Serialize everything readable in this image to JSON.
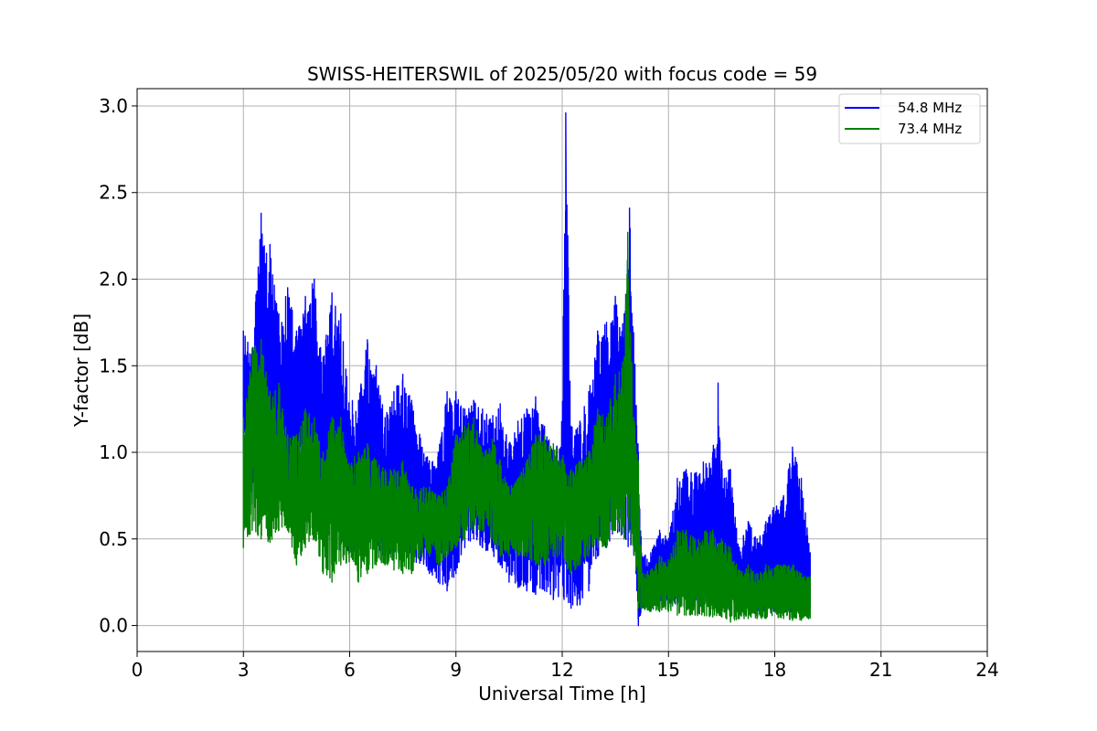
{
  "chart_data": {
    "type": "line",
    "title": "SWISS-HEITERSWIL of 2025/05/20 with focus code = 59",
    "xlabel": "Universal Time [h]",
    "ylabel": "Y-factor [dB]",
    "xlim": [
      0,
      24
    ],
    "ylim": [
      -0.15,
      3.1
    ],
    "xticks": [
      0,
      3,
      6,
      9,
      12,
      15,
      18,
      21,
      24
    ],
    "xtick_labels": [
      "0",
      "3",
      "6",
      "9",
      "12",
      "15",
      "18",
      "21",
      "24"
    ],
    "yticks": [
      0.0,
      0.5,
      1.0,
      1.5,
      2.0,
      2.5,
      3.0
    ],
    "ytick_labels": [
      "0.0",
      "0.5",
      "1.0",
      "1.5",
      "2.0",
      "2.5",
      "3.0"
    ],
    "grid": true,
    "legend_position": "top-right",
    "series": [
      {
        "name": "54.8 MHz",
        "color": "#0000ff",
        "data_range": [
          3.0,
          19.0
        ],
        "upper_envelope": [
          [
            3.0,
            1.7
          ],
          [
            3.25,
            1.6
          ],
          [
            3.5,
            2.38
          ],
          [
            3.75,
            2.2
          ],
          [
            4.0,
            1.8
          ],
          [
            4.25,
            1.95
          ],
          [
            4.5,
            1.7
          ],
          [
            4.75,
            1.9
          ],
          [
            5.0,
            2.0
          ],
          [
            5.25,
            1.55
          ],
          [
            5.5,
            1.92
          ],
          [
            5.75,
            1.8
          ],
          [
            6.0,
            1.3
          ],
          [
            6.25,
            1.3
          ],
          [
            6.5,
            1.65
          ],
          [
            6.75,
            1.5
          ],
          [
            7.0,
            1.2
          ],
          [
            7.25,
            1.35
          ],
          [
            7.5,
            1.45
          ],
          [
            7.75,
            1.3
          ],
          [
            8.0,
            1.1
          ],
          [
            8.25,
            0.95
          ],
          [
            8.5,
            1.0
          ],
          [
            8.75,
            1.35
          ],
          [
            9.0,
            1.35
          ],
          [
            9.25,
            1.25
          ],
          [
            9.5,
            1.3
          ],
          [
            9.75,
            1.25
          ],
          [
            10.0,
            1.2
          ],
          [
            10.25,
            1.28
          ],
          [
            10.5,
            1.05
          ],
          [
            10.75,
            1.18
          ],
          [
            11.0,
            1.25
          ],
          [
            11.25,
            1.32
          ],
          [
            11.5,
            1.15
          ],
          [
            11.75,
            1.0
          ],
          [
            12.0,
            1.2
          ],
          [
            12.1,
            2.96
          ],
          [
            12.25,
            1.15
          ],
          [
            12.5,
            1.18
          ],
          [
            12.75,
            1.35
          ],
          [
            13.0,
            1.7
          ],
          [
            13.25,
            1.75
          ],
          [
            13.5,
            1.9
          ],
          [
            13.75,
            1.8
          ],
          [
            13.9,
            2.41
          ],
          [
            14.0,
            1.8
          ],
          [
            14.15,
            1.0
          ],
          [
            14.25,
            0.4
          ],
          [
            14.5,
            0.42
          ],
          [
            14.75,
            0.55
          ],
          [
            15.0,
            0.5
          ],
          [
            15.25,
            0.85
          ],
          [
            15.5,
            0.9
          ],
          [
            15.75,
            0.88
          ],
          [
            16.0,
            0.95
          ],
          [
            16.25,
            1.0
          ],
          [
            16.4,
            1.4
          ],
          [
            16.5,
            0.95
          ],
          [
            16.75,
            0.9
          ],
          [
            17.0,
            0.45
          ],
          [
            17.25,
            0.6
          ],
          [
            17.5,
            0.5
          ],
          [
            17.75,
            0.6
          ],
          [
            18.0,
            0.7
          ],
          [
            18.25,
            0.75
          ],
          [
            18.5,
            1.03
          ],
          [
            18.75,
            0.85
          ],
          [
            19.0,
            0.42
          ]
        ],
        "lower_envelope": [
          [
            3.0,
            1.0
          ],
          [
            3.25,
            0.7
          ],
          [
            3.5,
            0.85
          ],
          [
            3.75,
            0.8
          ],
          [
            4.0,
            0.75
          ],
          [
            4.25,
            0.7
          ],
          [
            4.5,
            0.75
          ],
          [
            4.75,
            0.65
          ],
          [
            5.0,
            0.7
          ],
          [
            5.25,
            0.55
          ],
          [
            5.5,
            0.6
          ],
          [
            5.75,
            0.55
          ],
          [
            6.0,
            0.4
          ],
          [
            6.25,
            0.45
          ],
          [
            6.5,
            0.5
          ],
          [
            6.75,
            0.42
          ],
          [
            7.0,
            0.4
          ],
          [
            7.25,
            0.4
          ],
          [
            7.5,
            0.42
          ],
          [
            7.75,
            0.38
          ],
          [
            8.0,
            0.35
          ],
          [
            8.25,
            0.3
          ],
          [
            8.5,
            0.25
          ],
          [
            8.75,
            0.2
          ],
          [
            9.0,
            0.3
          ],
          [
            9.25,
            0.45
          ],
          [
            9.5,
            0.5
          ],
          [
            9.75,
            0.45
          ],
          [
            10.0,
            0.4
          ],
          [
            10.25,
            0.35
          ],
          [
            10.5,
            0.25
          ],
          [
            10.75,
            0.22
          ],
          [
            11.0,
            0.2
          ],
          [
            11.25,
            0.18
          ],
          [
            11.5,
            0.2
          ],
          [
            11.75,
            0.15
          ],
          [
            12.0,
            0.15
          ],
          [
            12.25,
            0.1
          ],
          [
            12.5,
            0.12
          ],
          [
            12.75,
            0.2
          ],
          [
            13.0,
            0.4
          ],
          [
            13.25,
            0.45
          ],
          [
            13.5,
            0.55
          ],
          [
            13.75,
            0.5
          ],
          [
            14.0,
            0.4
          ],
          [
            14.15,
            0.0
          ],
          [
            14.25,
            0.1
          ],
          [
            14.5,
            0.1
          ],
          [
            14.75,
            0.1
          ],
          [
            15.0,
            0.1
          ],
          [
            15.25,
            0.12
          ],
          [
            15.5,
            0.1
          ],
          [
            15.75,
            0.1
          ],
          [
            16.0,
            0.1
          ],
          [
            16.25,
            0.1
          ],
          [
            16.5,
            0.1
          ],
          [
            16.75,
            0.08
          ],
          [
            17.0,
            0.08
          ],
          [
            17.25,
            0.08
          ],
          [
            17.5,
            0.08
          ],
          [
            17.75,
            0.08
          ],
          [
            18.0,
            0.08
          ],
          [
            18.25,
            0.06
          ],
          [
            18.5,
            0.06
          ],
          [
            18.75,
            0.06
          ],
          [
            19.0,
            0.1
          ]
        ]
      },
      {
        "name": "73.4 MHz",
        "color": "#008000",
        "data_range": [
          3.0,
          19.0
        ],
        "upper_envelope": [
          [
            3.0,
            1.2
          ],
          [
            3.25,
            1.6
          ],
          [
            3.5,
            1.65
          ],
          [
            3.75,
            1.35
          ],
          [
            4.0,
            1.4
          ],
          [
            4.25,
            1.1
          ],
          [
            4.5,
            1.1
          ],
          [
            4.75,
            1.25
          ],
          [
            5.0,
            1.2
          ],
          [
            5.25,
            1.0
          ],
          [
            5.5,
            1.2
          ],
          [
            5.75,
            1.2
          ],
          [
            6.0,
            0.95
          ],
          [
            6.25,
            1.0
          ],
          [
            6.5,
            1.05
          ],
          [
            6.75,
            0.95
          ],
          [
            7.0,
            0.9
          ],
          [
            7.25,
            0.9
          ],
          [
            7.5,
            0.95
          ],
          [
            7.75,
            0.8
          ],
          [
            8.0,
            0.8
          ],
          [
            8.25,
            0.8
          ],
          [
            8.5,
            0.75
          ],
          [
            8.75,
            0.8
          ],
          [
            9.0,
            1.1
          ],
          [
            9.25,
            1.15
          ],
          [
            9.5,
            1.2
          ],
          [
            9.75,
            1.0
          ],
          [
            10.0,
            1.1
          ],
          [
            10.25,
            0.95
          ],
          [
            10.5,
            0.8
          ],
          [
            10.75,
            0.85
          ],
          [
            11.0,
            0.95
          ],
          [
            11.25,
            1.1
          ],
          [
            11.5,
            1.1
          ],
          [
            11.75,
            1.05
          ],
          [
            12.0,
            1.0
          ],
          [
            12.25,
            0.9
          ],
          [
            12.5,
            0.95
          ],
          [
            12.75,
            1.0
          ],
          [
            13.0,
            1.25
          ],
          [
            13.25,
            1.2
          ],
          [
            13.5,
            1.45
          ],
          [
            13.75,
            1.55
          ],
          [
            13.85,
            2.27
          ],
          [
            14.0,
            1.35
          ],
          [
            14.15,
            0.95
          ],
          [
            14.25,
            0.3
          ],
          [
            14.5,
            0.32
          ],
          [
            14.75,
            0.4
          ],
          [
            15.0,
            0.38
          ],
          [
            15.25,
            0.55
          ],
          [
            15.5,
            0.55
          ],
          [
            15.75,
            0.5
          ],
          [
            16.0,
            0.55
          ],
          [
            16.25,
            0.55
          ],
          [
            16.5,
            0.5
          ],
          [
            16.75,
            0.45
          ],
          [
            17.0,
            0.32
          ],
          [
            17.25,
            0.35
          ],
          [
            17.5,
            0.3
          ],
          [
            17.75,
            0.35
          ],
          [
            18.0,
            0.35
          ],
          [
            18.25,
            0.35
          ],
          [
            18.5,
            0.35
          ],
          [
            18.75,
            0.3
          ],
          [
            19.0,
            0.28
          ]
        ],
        "lower_envelope": [
          [
            3.0,
            0.45
          ],
          [
            3.25,
            0.55
          ],
          [
            3.5,
            0.5
          ],
          [
            3.75,
            0.48
          ],
          [
            4.0,
            0.55
          ],
          [
            4.25,
            0.55
          ],
          [
            4.5,
            0.35
          ],
          [
            4.75,
            0.45
          ],
          [
            5.0,
            0.5
          ],
          [
            5.25,
            0.3
          ],
          [
            5.5,
            0.25
          ],
          [
            5.75,
            0.35
          ],
          [
            6.0,
            0.35
          ],
          [
            6.25,
            0.25
          ],
          [
            6.5,
            0.3
          ],
          [
            6.75,
            0.35
          ],
          [
            7.0,
            0.35
          ],
          [
            7.25,
            0.32
          ],
          [
            7.5,
            0.3
          ],
          [
            7.75,
            0.3
          ],
          [
            8.0,
            0.4
          ],
          [
            8.25,
            0.4
          ],
          [
            8.5,
            0.35
          ],
          [
            8.75,
            0.4
          ],
          [
            9.0,
            0.45
          ],
          [
            9.25,
            0.5
          ],
          [
            9.5,
            0.55
          ],
          [
            9.75,
            0.55
          ],
          [
            10.0,
            0.5
          ],
          [
            10.25,
            0.4
          ],
          [
            10.5,
            0.4
          ],
          [
            10.75,
            0.4
          ],
          [
            11.0,
            0.4
          ],
          [
            11.25,
            0.35
          ],
          [
            11.5,
            0.35
          ],
          [
            11.75,
            0.4
          ],
          [
            12.0,
            0.35
          ],
          [
            12.25,
            0.3
          ],
          [
            12.5,
            0.35
          ],
          [
            12.75,
            0.4
          ],
          [
            13.0,
            0.45
          ],
          [
            13.25,
            0.45
          ],
          [
            13.5,
            0.55
          ],
          [
            13.75,
            0.5
          ],
          [
            14.0,
            0.45
          ],
          [
            14.15,
            0.1
          ],
          [
            14.25,
            0.1
          ],
          [
            14.5,
            0.08
          ],
          [
            14.75,
            0.08
          ],
          [
            15.0,
            0.08
          ],
          [
            15.25,
            0.06
          ],
          [
            15.5,
            0.06
          ],
          [
            15.75,
            0.06
          ],
          [
            16.0,
            0.05
          ],
          [
            16.25,
            0.05
          ],
          [
            16.5,
            0.05
          ],
          [
            16.75,
            0.02
          ],
          [
            17.0,
            0.04
          ],
          [
            17.25,
            0.04
          ],
          [
            17.5,
            0.04
          ],
          [
            17.75,
            0.04
          ],
          [
            18.0,
            0.04
          ],
          [
            18.25,
            0.04
          ],
          [
            18.5,
            0.03
          ],
          [
            18.75,
            0.03
          ],
          [
            19.0,
            0.04
          ]
        ]
      }
    ]
  }
}
